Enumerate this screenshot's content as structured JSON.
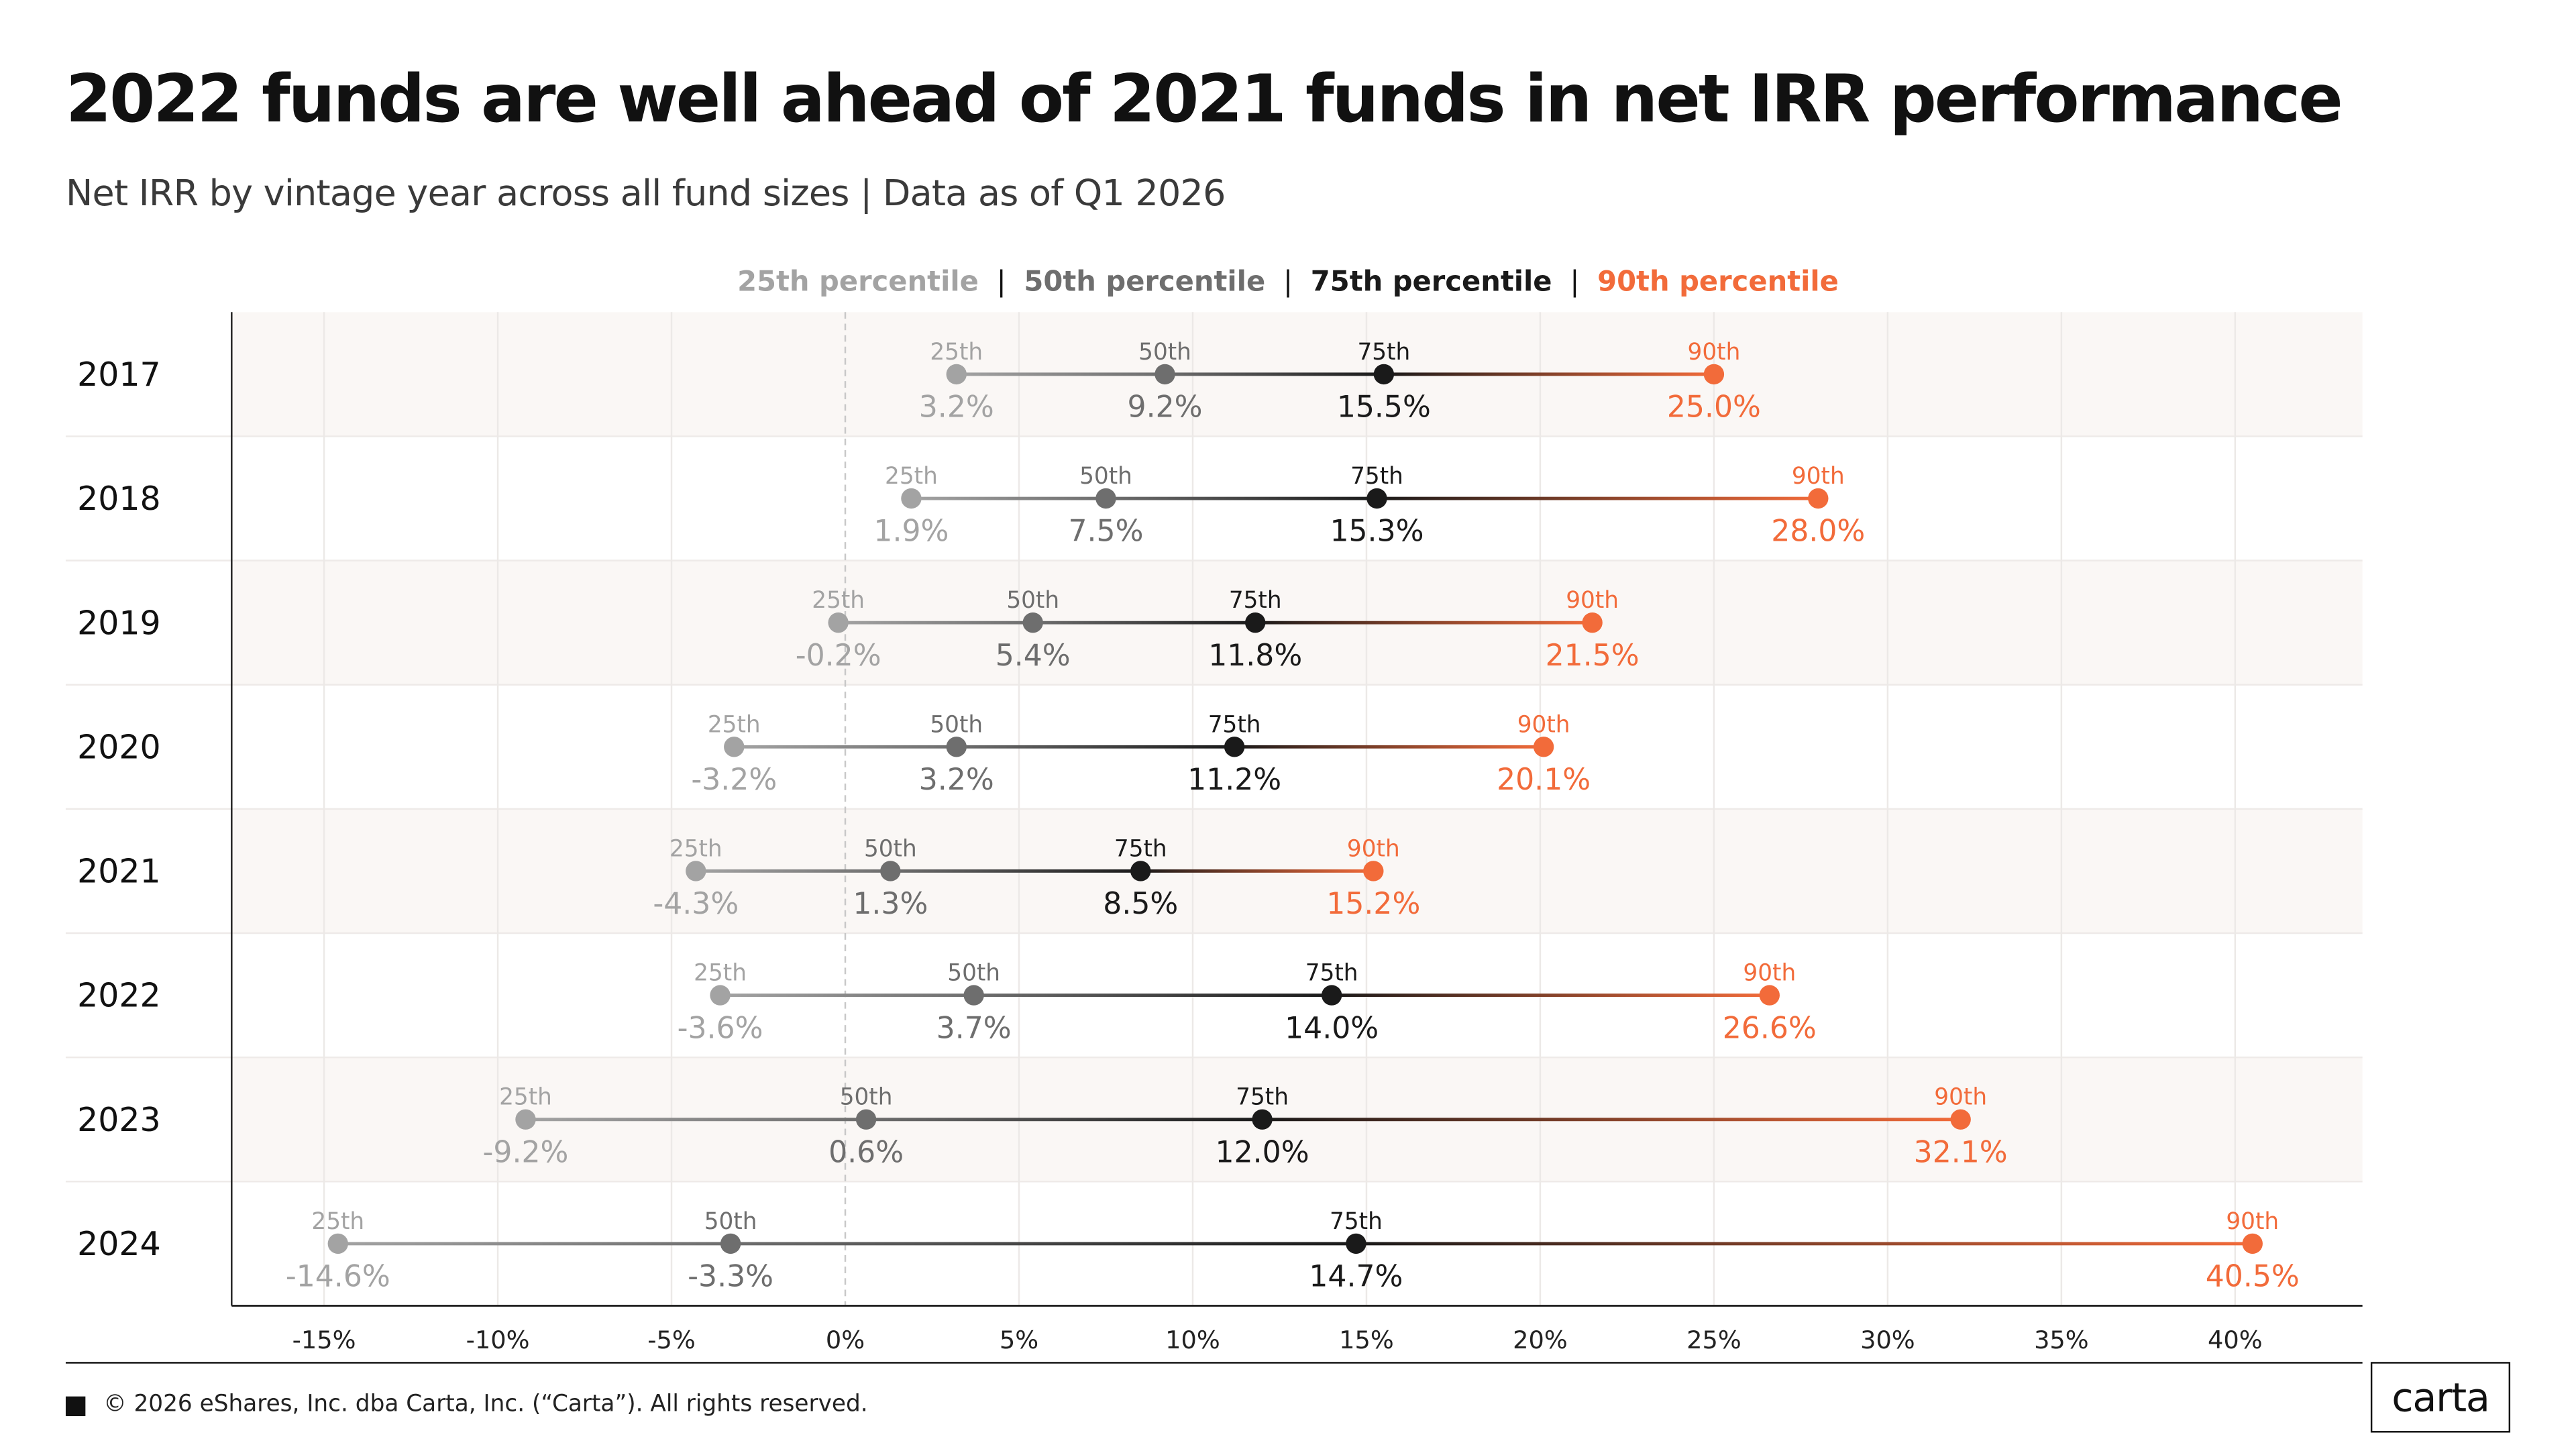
{
  "header": {
    "title": "2022 funds are well ahead of 2021 funds in net IRR performance",
    "subtitle": "Net IRR by vintage year across all fund sizes | Data as of Q1 2026"
  },
  "legend": {
    "items": [
      {
        "label": "25th percentile",
        "color": "#a3a3a3"
      },
      {
        "label": "50th percentile",
        "color": "#6e6e6e"
      },
      {
        "label": "75th percentile",
        "color": "#1a1a1a"
      },
      {
        "label": "90th percentile",
        "color": "#f26b3a"
      }
    ],
    "separator": "|"
  },
  "colors": {
    "p25": "#a3a3a3",
    "p50": "#6e6e6e",
    "p75": "#1a1a1a",
    "p90": "#f26b3a",
    "row_shade": "#faf7f5",
    "grid": "#ece9e7",
    "zero_line": "#c8c8c8"
  },
  "chart_data": {
    "type": "dumbbell",
    "title": "2022 funds are well ahead of 2021 funds in net IRR performance",
    "subtitle": "Net IRR by vintage year across all fund sizes | Data as of Q1 2026",
    "categories": [
      "2017",
      "2018",
      "2019",
      "2020",
      "2021",
      "2022",
      "2023",
      "2024"
    ],
    "percentile_markers": [
      "25th",
      "50th",
      "75th",
      "90th"
    ],
    "series": [
      {
        "name": "25th percentile",
        "values": [
          3.2,
          1.9,
          -0.2,
          -3.2,
          -4.3,
          -3.6,
          -9.2,
          -14.6
        ],
        "labels": [
          "3.2%",
          "1.9%",
          "-0.2%",
          "-3.2%",
          "-4.3%",
          "-3.6%",
          "-9.2%",
          "-14.6%"
        ]
      },
      {
        "name": "50th percentile",
        "values": [
          9.2,
          7.5,
          5.4,
          3.2,
          1.3,
          3.7,
          0.6,
          -3.3
        ],
        "labels": [
          "9.2%",
          "7.5%",
          "5.4%",
          "3.2%",
          "1.3%",
          "3.7%",
          "0.6%",
          "-3.3%"
        ]
      },
      {
        "name": "75th percentile",
        "values": [
          15.5,
          15.3,
          11.8,
          11.2,
          8.5,
          14.0,
          12.0,
          14.7
        ],
        "labels": [
          "15.5%",
          "15.3%",
          "11.8%",
          "11.2%",
          "8.5%",
          "14.0%",
          "12.0%",
          "14.7%"
        ]
      },
      {
        "name": "90th percentile",
        "values": [
          25.0,
          28.0,
          21.5,
          20.1,
          15.2,
          26.6,
          32.1,
          40.5
        ],
        "labels": [
          "25.0%",
          "28.0%",
          "21.5%",
          "20.1%",
          "15.2%",
          "26.6%",
          "32.1%",
          "40.5%"
        ]
      }
    ],
    "x_ticks": [
      -15,
      -10,
      -5,
      0,
      5,
      10,
      15,
      20,
      25,
      30,
      35,
      40
    ],
    "x_tick_labels": [
      "-15%",
      "-10%",
      "-5%",
      "0%",
      "5%",
      "10%",
      "15%",
      "20%",
      "25%",
      "30%",
      "35%",
      "40%"
    ],
    "xlim": [
      -17.6,
      43.7
    ],
    "xlabel": "",
    "ylabel": "",
    "grid": true,
    "legend_position": "top-center"
  },
  "footer": {
    "copyright": "© 2026 eShares, Inc. dba Carta, Inc. (“Carta”). All rights reserved.",
    "logo_text": "carta"
  }
}
